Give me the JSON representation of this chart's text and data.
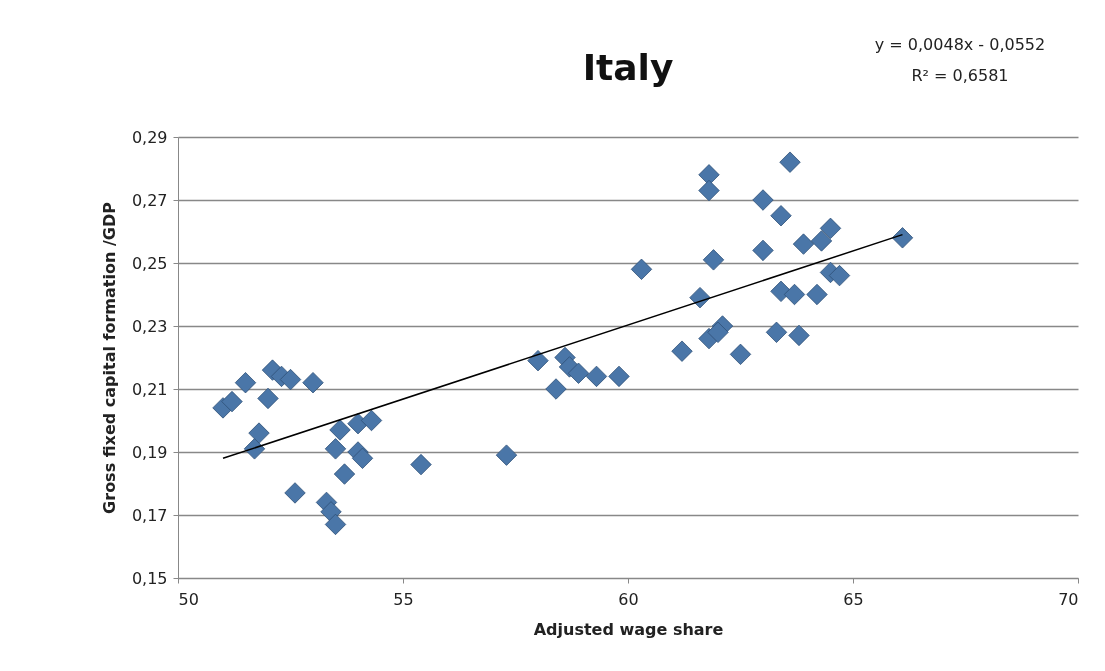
{
  "chart_data": {
    "type": "scatter",
    "title": "Italy",
    "xlabel": "Adjusted wage share",
    "ylabel": "Gross fixed capital formation  /GDP",
    "annotations": [
      "y = 0,0048x  - 0,0552",
      "R² = 0,6581"
    ],
    "xlim": [
      50,
      70
    ],
    "xticks": [
      50,
      55,
      60,
      65,
      70
    ],
    "ylim": [
      0.15,
      0.29
    ],
    "yticks": [
      {
        "value": 0.15,
        "label": "0,15"
      },
      {
        "value": 0.17,
        "label": "0,17"
      },
      {
        "value": 0.19,
        "label": "0,19"
      },
      {
        "value": 0.21,
        "label": "0,21"
      },
      {
        "value": 0.23,
        "label": "0,23"
      },
      {
        "value": 0.25,
        "label": "0,25"
      },
      {
        "value": 0.27,
        "label": "0,27"
      },
      {
        "value": 0.29,
        "label": "0,29"
      }
    ],
    "grid": "y",
    "series": [
      {
        "marker": "diamond",
        "color": "#4a76a8",
        "x": [
          51.0,
          51.2,
          51.5,
          51.8,
          51.7,
          52.0,
          52.1,
          52.3,
          52.5,
          52.6,
          53.0,
          53.3,
          53.4,
          53.5,
          53.6,
          53.5,
          53.7,
          54.0,
          54.1,
          54.0,
          54.3,
          55.4,
          57.3,
          58.0,
          58.4,
          58.6,
          58.7,
          58.9,
          59.3,
          59.8,
          60.3,
          61.2,
          61.6,
          61.8,
          61.8,
          61.9,
          61.8,
          62.1,
          62.0,
          62.5,
          63.0,
          63.0,
          63.3,
          63.4,
          63.4,
          63.6,
          63.7,
          63.8,
          63.9,
          64.2,
          64.3,
          64.5,
          64.5,
          64.7,
          66.1
        ],
        "values": [
          0.204,
          0.206,
          0.212,
          0.196,
          0.191,
          0.207,
          0.216,
          0.214,
          0.213,
          0.177,
          0.212,
          0.174,
          0.171,
          0.167,
          0.197,
          0.191,
          0.183,
          0.19,
          0.188,
          0.199,
          0.2,
          0.186,
          0.189,
          0.219,
          0.21,
          0.22,
          0.217,
          0.215,
          0.214,
          0.214,
          0.248,
          0.222,
          0.239,
          0.278,
          0.273,
          0.251,
          0.226,
          0.23,
          0.228,
          0.221,
          0.27,
          0.254,
          0.228,
          0.265,
          0.241,
          0.282,
          0.24,
          0.227,
          0.256,
          0.24,
          0.257,
          0.261,
          0.247,
          0.246,
          0.258
        ]
      },
      {
        "type": "line",
        "color": "#000000",
        "x": [
          51.0,
          66.1
        ],
        "values": [
          0.188,
          0.259
        ]
      }
    ]
  }
}
